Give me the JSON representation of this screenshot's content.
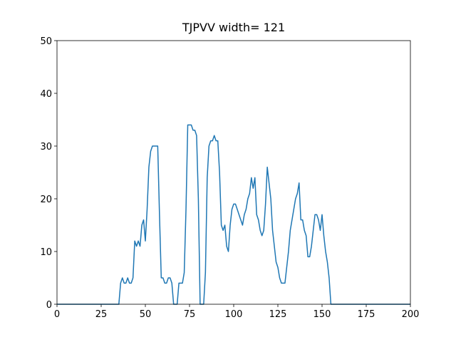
{
  "chart_data": {
    "type": "line",
    "title": "TJPVV width= 121",
    "x": [
      0,
      35,
      36,
      37,
      38,
      39,
      40,
      41,
      42,
      43,
      44,
      45,
      46,
      47,
      48,
      49,
      50,
      51,
      52,
      53,
      54,
      55,
      56,
      57,
      58,
      59,
      60,
      61,
      62,
      63,
      64,
      65,
      66,
      67,
      68,
      69,
      70,
      71,
      72,
      73,
      74,
      75,
      76,
      77,
      78,
      79,
      80,
      81,
      82,
      83,
      84,
      85,
      86,
      87,
      88,
      89,
      90,
      91,
      92,
      93,
      94,
      95,
      96,
      97,
      98,
      99,
      100,
      101,
      102,
      103,
      104,
      105,
      106,
      107,
      108,
      109,
      110,
      111,
      112,
      113,
      114,
      115,
      116,
      117,
      118,
      119,
      120,
      121,
      122,
      123,
      124,
      125,
      126,
      127,
      128,
      129,
      130,
      131,
      132,
      133,
      134,
      135,
      136,
      137,
      138,
      139,
      140,
      141,
      142,
      143,
      144,
      145,
      146,
      147,
      148,
      149,
      150,
      151,
      152,
      153,
      154,
      155,
      200
    ],
    "series": [
      {
        "color": "#1f77b4",
        "values": [
          0,
          0,
          4,
          5,
          4,
          4,
          5,
          4,
          4,
          5,
          12,
          11,
          12,
          11,
          15,
          16,
          12,
          18,
          26,
          29,
          30,
          30,
          30,
          30,
          17,
          5,
          5,
          4,
          4,
          5,
          5,
          4,
          0,
          0,
          0,
          4,
          4,
          4,
          6,
          18,
          34,
          34,
          34,
          33,
          33,
          32,
          20,
          0,
          0,
          0,
          6,
          24,
          30,
          31,
          31,
          32,
          31,
          31,
          25,
          15,
          14,
          15,
          11,
          10,
          15,
          18,
          19,
          19,
          18,
          17,
          16,
          15,
          17,
          18,
          20,
          21,
          24,
          22,
          24,
          17,
          16,
          14,
          13,
          14,
          19,
          26,
          23,
          20,
          14,
          11,
          8,
          7,
          5,
          4,
          4,
          4,
          7,
          10,
          14,
          16,
          18,
          20,
          21,
          23,
          16,
          16,
          14,
          13,
          9,
          9,
          11,
          14,
          17,
          17,
          16,
          14,
          17,
          13,
          10,
          8,
          5,
          0,
          0
        ]
      }
    ],
    "xlim": [
      0,
      200
    ],
    "xticks": [
      0,
      25,
      50,
      75,
      100,
      125,
      150,
      175,
      200
    ],
    "ylim": [
      0,
      50
    ],
    "yticks": [
      0,
      10,
      20,
      30,
      40,
      50
    ]
  }
}
